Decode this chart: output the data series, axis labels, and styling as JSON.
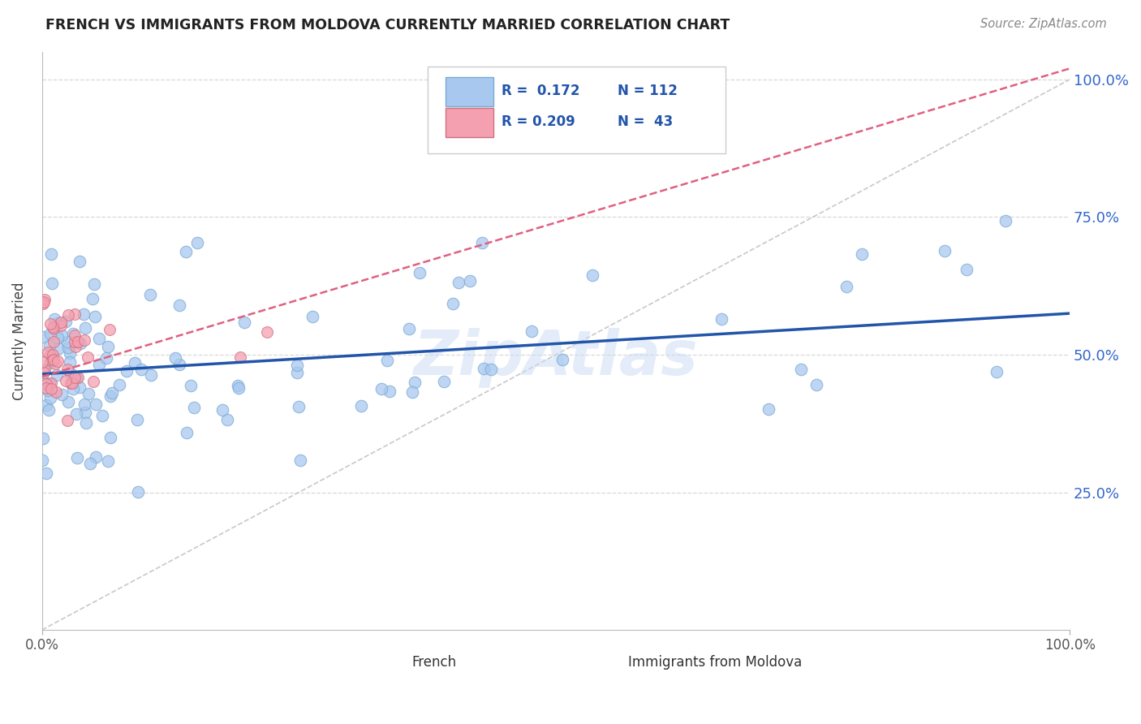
{
  "title": "FRENCH VS IMMIGRANTS FROM MOLDOVA CURRENTLY MARRIED CORRELATION CHART",
  "source_text": "Source: ZipAtlas.com",
  "ylabel": "Currently Married",
  "watermark": "ZipAtlas",
  "french_color": "#a8c8f0",
  "french_edge_color": "#7aaad0",
  "moldova_color": "#f4a0b0",
  "moldova_edge_color": "#d07080",
  "trendline_french_color": "#2255aa",
  "trendline_moldova_color": "#e06080",
  "trendline_ref_color": "#d0a0a8",
  "grid_color": "#d8d8d8",
  "right_label_color": "#3366cc",
  "xlim": [
    0.0,
    1.0
  ],
  "ylim": [
    0.0,
    1.05
  ],
  "xticks": [
    0.0,
    1.0
  ],
  "xtick_labels": [
    "0.0%",
    "100.0%"
  ],
  "yticks": [
    0.25,
    0.5,
    0.75,
    1.0
  ],
  "ytick_labels": [
    "25.0%",
    "50.0%",
    "75.0%",
    "100.0%"
  ],
  "french_trend_x": [
    0.0,
    1.0
  ],
  "french_trend_y": [
    0.465,
    0.575
  ],
  "moldova_trend_x": [
    0.0,
    1.0
  ],
  "moldova_trend_y": [
    0.46,
    1.02
  ],
  "legend_items": [
    {
      "label": "R =  0.172   N = 112",
      "color": "#a8c8f0",
      "edge": "#7aaad0"
    },
    {
      "label": "R = 0.209   N =  43",
      "color": "#f4a0b0",
      "edge": "#d07080"
    }
  ],
  "bottom_legend": [
    {
      "label": "French",
      "color": "#a8c8f0",
      "edge": "#7aaad0"
    },
    {
      "label": "Immigrants from Moldova",
      "color": "#f4a0b0",
      "edge": "#d07080"
    }
  ]
}
